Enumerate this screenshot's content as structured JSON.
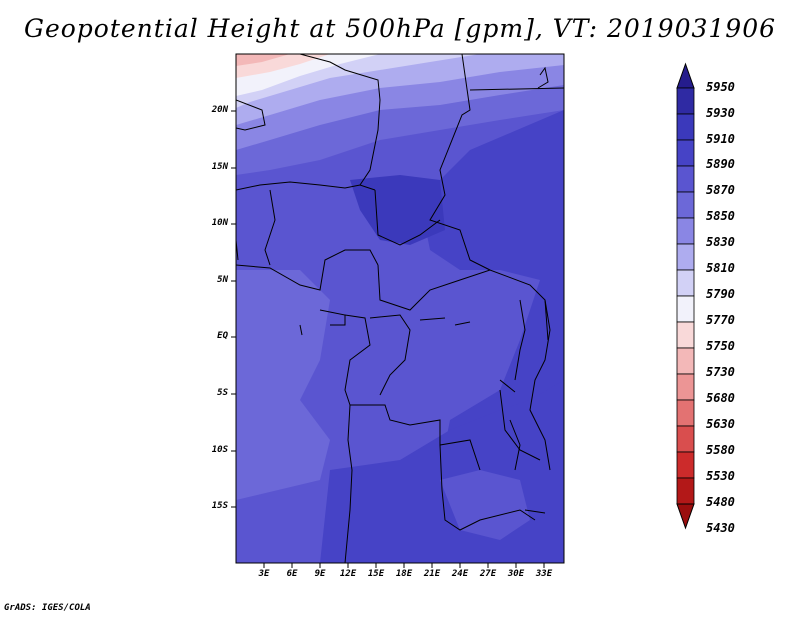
{
  "title": "Geopotential Height at 500hPa [gpm], VT: 2019031906",
  "footer": "GrADS: IGES/COLA",
  "map": {
    "lat_labels": [
      "20N",
      "15N",
      "10N",
      "5N",
      "EQ",
      "5S",
      "10S",
      "15S"
    ],
    "lon_labels": [
      "3E",
      "6E",
      "9E",
      "12E",
      "15E",
      "18E",
      "21E",
      "24E",
      "27E",
      "30E",
      "33E"
    ]
  },
  "colorbar": {
    "levels": [
      "5950",
      "5930",
      "5910",
      "5890",
      "5870",
      "5850",
      "5830",
      "5810",
      "5790",
      "5770",
      "5750",
      "5730",
      "5680",
      "5630",
      "5580",
      "5530",
      "5480",
      "5430"
    ],
    "colors": [
      "#251c8c",
      "#2f2aa3",
      "#3b39bb",
      "#4643c6",
      "#5a55d0",
      "#6c68d8",
      "#8a86e4",
      "#aeacef",
      "#d2d1f6",
      "#f2f2fb",
      "#f9d9d9",
      "#f3b8b8",
      "#ec9595",
      "#e37272",
      "#d94e4e",
      "#cc2b2b",
      "#b31818",
      "#9b0e0e"
    ]
  }
}
